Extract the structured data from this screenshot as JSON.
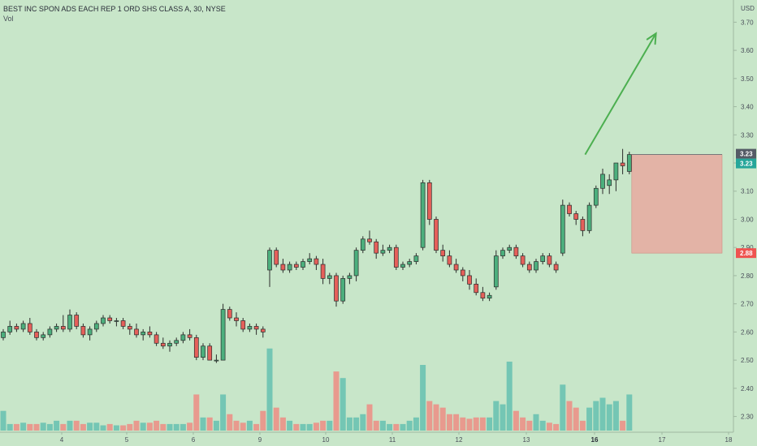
{
  "header": {
    "title": "BEST INC SPON ADS EACH REP 1 ORD SHS CLASS A, 30, NYSE",
    "vol_label": "Vol"
  },
  "colors": {
    "background": "#c8e6c9",
    "up": "#4caf7d",
    "down": "#e5605a",
    "vol_up": "#74c6b4",
    "vol_down": "#e89a8e",
    "arrow": "#4caf50",
    "stop_zone": "#e8a9a0",
    "badge_green": "#26a69a",
    "badge_red": "#ef5350",
    "badge_dark": "#555b66"
  },
  "chart_data": {
    "type": "candlestick",
    "title": "BEST INC SPON ADS EACH REP 1 ORD SHS CLASS A, 30, NYSE",
    "currency": "USD",
    "ylim": [
      2.27,
      3.75
    ],
    "y_ticks": [
      "3.70",
      "3.60",
      "3.50",
      "3.40",
      "3.30",
      "3.20",
      "3.10",
      "3.00",
      "2.90",
      "2.80",
      "2.70",
      "2.60",
      "2.50",
      "2.40",
      "2.30"
    ],
    "x_ticks": [
      "4",
      "5",
      "6",
      "9",
      "10",
      "11",
      "12",
      "13",
      "16",
      "17",
      "18"
    ],
    "price_badges": [
      {
        "label": "3.23",
        "style": "dark"
      },
      {
        "label": "3.23",
        "style": "green"
      },
      {
        "label": "2.88",
        "style": "red"
      }
    ],
    "zone": {
      "top": 3.23,
      "bottom": 2.88
    },
    "arrow": {
      "from_bar": 87,
      "from_price": 3.23,
      "to_bar": 98,
      "to_price": 3.66
    },
    "candles": [
      [
        2.58,
        2.61,
        2.57,
        2.6
      ],
      [
        2.6,
        2.64,
        2.59,
        2.62
      ],
      [
        2.62,
        2.63,
        2.6,
        2.61
      ],
      [
        2.61,
        2.64,
        2.6,
        2.63
      ],
      [
        2.63,
        2.65,
        2.59,
        2.6
      ],
      [
        2.6,
        2.61,
        2.57,
        2.58
      ],
      [
        2.58,
        2.6,
        2.57,
        2.59
      ],
      [
        2.59,
        2.62,
        2.58,
        2.61
      ],
      [
        2.61,
        2.63,
        2.6,
        2.62
      ],
      [
        2.62,
        2.66,
        2.6,
        2.61
      ],
      [
        2.61,
        2.68,
        2.6,
        2.66
      ],
      [
        2.66,
        2.67,
        2.61,
        2.62
      ],
      [
        2.62,
        2.63,
        2.58,
        2.59
      ],
      [
        2.59,
        2.62,
        2.57,
        2.61
      ],
      [
        2.61,
        2.64,
        2.6,
        2.63
      ],
      [
        2.63,
        2.66,
        2.62,
        2.65
      ],
      [
        2.65,
        2.66,
        2.63,
        2.64
      ],
      [
        2.64,
        2.65,
        2.62,
        2.64
      ],
      [
        2.64,
        2.65,
        2.61,
        2.62
      ],
      [
        2.62,
        2.63,
        2.59,
        2.61
      ],
      [
        2.61,
        2.63,
        2.58,
        2.59
      ],
      [
        2.59,
        2.61,
        2.57,
        2.6
      ],
      [
        2.6,
        2.62,
        2.58,
        2.59
      ],
      [
        2.59,
        2.6,
        2.55,
        2.56
      ],
      [
        2.56,
        2.58,
        2.54,
        2.55
      ],
      [
        2.55,
        2.57,
        2.53,
        2.56
      ],
      [
        2.56,
        2.58,
        2.55,
        2.57
      ],
      [
        2.57,
        2.6,
        2.56,
        2.59
      ],
      [
        2.59,
        2.61,
        2.57,
        2.58
      ],
      [
        2.58,
        2.59,
        2.5,
        2.51
      ],
      [
        2.51,
        2.56,
        2.5,
        2.55
      ],
      [
        2.55,
        2.56,
        2.5,
        2.5
      ],
      [
        2.5,
        2.52,
        2.49,
        2.5
      ],
      [
        2.5,
        2.7,
        2.5,
        2.68
      ],
      [
        2.68,
        2.69,
        2.64,
        2.65
      ],
      [
        2.65,
        2.67,
        2.62,
        2.64
      ],
      [
        2.64,
        2.65,
        2.6,
        2.61
      ],
      [
        2.61,
        2.63,
        2.6,
        2.62
      ],
      [
        2.62,
        2.63,
        2.59,
        2.61
      ],
      [
        2.61,
        2.62,
        2.58,
        2.6
      ],
      [
        2.82,
        2.9,
        2.76,
        2.89
      ],
      [
        2.89,
        2.9,
        2.83,
        2.84
      ],
      [
        2.84,
        2.86,
        2.81,
        2.82
      ],
      [
        2.82,
        2.85,
        2.81,
        2.84
      ],
      [
        2.84,
        2.85,
        2.82,
        2.83
      ],
      [
        2.83,
        2.86,
        2.82,
        2.85
      ],
      [
        2.85,
        2.88,
        2.84,
        2.86
      ],
      [
        2.86,
        2.87,
        2.82,
        2.84
      ],
      [
        2.84,
        2.86,
        2.77,
        2.79
      ],
      [
        2.79,
        2.81,
        2.77,
        2.8
      ],
      [
        2.8,
        2.81,
        2.69,
        2.71
      ],
      [
        2.71,
        2.8,
        2.7,
        2.79
      ],
      [
        2.79,
        2.81,
        2.77,
        2.8
      ],
      [
        2.8,
        2.9,
        2.78,
        2.89
      ],
      [
        2.89,
        2.94,
        2.88,
        2.93
      ],
      [
        2.93,
        2.96,
        2.91,
        2.92
      ],
      [
        2.92,
        2.93,
        2.86,
        2.88
      ],
      [
        2.88,
        2.91,
        2.87,
        2.89
      ],
      [
        2.89,
        2.91,
        2.88,
        2.9
      ],
      [
        2.9,
        2.91,
        2.82,
        2.83
      ],
      [
        2.83,
        2.85,
        2.82,
        2.84
      ],
      [
        2.84,
        2.86,
        2.83,
        2.85
      ],
      [
        2.85,
        2.88,
        2.84,
        2.87
      ],
      [
        2.9,
        3.14,
        2.89,
        3.13
      ],
      [
        3.13,
        3.14,
        2.98,
        3.0
      ],
      [
        3.0,
        3.01,
        2.88,
        2.89
      ],
      [
        2.89,
        2.91,
        2.85,
        2.87
      ],
      [
        2.87,
        2.89,
        2.83,
        2.84
      ],
      [
        2.84,
        2.86,
        2.81,
        2.82
      ],
      [
        2.82,
        2.83,
        2.78,
        2.8
      ],
      [
        2.8,
        2.82,
        2.75,
        2.77
      ],
      [
        2.77,
        2.79,
        2.73,
        2.74
      ],
      [
        2.74,
        2.76,
        2.71,
        2.72
      ],
      [
        2.72,
        2.74,
        2.71,
        2.73
      ],
      [
        2.76,
        2.89,
        2.75,
        2.87
      ],
      [
        2.87,
        2.9,
        2.86,
        2.89
      ],
      [
        2.89,
        2.91,
        2.88,
        2.9
      ],
      [
        2.9,
        2.91,
        2.86,
        2.87
      ],
      [
        2.87,
        2.88,
        2.83,
        2.84
      ],
      [
        2.84,
        2.85,
        2.81,
        2.82
      ],
      [
        2.82,
        2.86,
        2.81,
        2.85
      ],
      [
        2.85,
        2.88,
        2.84,
        2.87
      ],
      [
        2.87,
        2.88,
        2.83,
        2.84
      ],
      [
        2.84,
        2.85,
        2.81,
        2.82
      ],
      [
        2.88,
        3.07,
        2.87,
        3.05
      ],
      [
        3.05,
        3.06,
        3.01,
        3.02
      ],
      [
        3.02,
        3.03,
        2.98,
        3.0
      ],
      [
        3.0,
        3.01,
        2.94,
        2.96
      ],
      [
        2.96,
        3.06,
        2.95,
        3.05
      ],
      [
        3.05,
        3.12,
        3.04,
        3.11
      ],
      [
        3.11,
        3.18,
        3.09,
        3.16
      ],
      [
        3.12,
        3.16,
        3.09,
        3.14
      ],
      [
        3.14,
        3.2,
        3.1,
        3.2
      ],
      [
        3.2,
        3.25,
        3.16,
        3.19
      ],
      [
        3.17,
        3.24,
        3.16,
        3.23
      ]
    ],
    "volume": [
      3,
      1,
      1,
      1.2,
      1,
      1,
      1.2,
      1,
      1.5,
      1,
      1.5,
      1.5,
      1,
      1.2,
      1.2,
      0.8,
      1,
      0.8,
      0.8,
      1,
      1.5,
      1.2,
      1.2,
      1.5,
      1,
      1,
      1,
      1,
      1.2,
      5.5,
      2,
      2,
      1.5,
      5.5,
      2.5,
      1.5,
      1.2,
      1.5,
      1,
      3,
      12.5,
      3.5,
      2,
      1.5,
      1,
      1,
      1,
      1.2,
      1.5,
      1.5,
      9,
      8,
      2,
      2,
      2.5,
      4,
      1.5,
      1.5,
      1,
      1,
      1,
      1.5,
      2,
      10,
      4.5,
      4,
      3.5,
      2.5,
      2.5,
      2,
      1.8,
      2,
      2,
      2,
      4.5,
      4,
      10.5,
      3,
      2,
      1.5,
      2.5,
      1.5,
      1.2,
      1,
      7,
      4.5,
      3.5,
      1.5,
      3.5,
      4.5,
      5,
      4,
      4.5,
      1.5,
      5.5
    ]
  }
}
